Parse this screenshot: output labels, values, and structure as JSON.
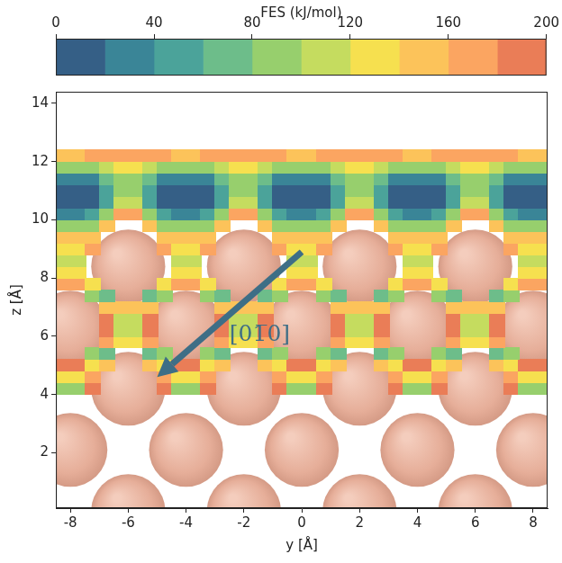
{
  "chart_data": {
    "type": "contour",
    "xlabel": "y [Å]",
    "ylabel": "z [Å]",
    "xlim": [
      -8.5,
      8.5
    ],
    "xticks": [
      -8,
      -6,
      -4,
      -2,
      0,
      2,
      4,
      6,
      8
    ],
    "ylim": [
      0.1,
      14.4
    ],
    "yticks": [
      2,
      4,
      6,
      8,
      10,
      12,
      14
    ],
    "grid": false,
    "x": [
      -8.25,
      -7.75,
      -7.25,
      -6.75,
      -6.25,
      -5.75,
      -5.25,
      -4.75,
      -4.25,
      -3.75,
      -3.25,
      -2.75,
      -2.25,
      -1.75,
      -1.25,
      -0.75,
      -0.25,
      0.25,
      0.75,
      1.25,
      1.75,
      2.25,
      2.75,
      3.25,
      3.75,
      4.25,
      4.75,
      5.25,
      5.75,
      6.25,
      6.75,
      7.25,
      7.75,
      8.25
    ],
    "y": [
      4.2,
      4.6,
      5.0,
      5.4,
      5.8,
      6.2,
      6.6,
      7.0,
      7.4,
      7.8,
      8.2,
      8.6,
      9.0,
      9.4,
      9.8,
      10.2,
      10.6,
      11.0,
      11.4,
      11.8,
      12.2
    ],
    "cells": [
      [
        100,
        100,
        190,
        null,
        null,
        null,
        null,
        190,
        100,
        100,
        190,
        null,
        null,
        null,
        null,
        190,
        100,
        100,
        190,
        null,
        null,
        null,
        null,
        190,
        100,
        100,
        190,
        null,
        null,
        null,
        null,
        190,
        100,
        100
      ],
      [
        140,
        140,
        180,
        null,
        null,
        null,
        null,
        180,
        140,
        140,
        180,
        null,
        null,
        null,
        null,
        180,
        140,
        140,
        180,
        null,
        null,
        null,
        null,
        180,
        140,
        140,
        180,
        null,
        null,
        null,
        null,
        180,
        140,
        140
      ],
      [
        190,
        190,
        130,
        160,
        null,
        null,
        160,
        130,
        190,
        190,
        130,
        160,
        null,
        null,
        160,
        130,
        190,
        190,
        130,
        160,
        null,
        null,
        160,
        130,
        190,
        190,
        130,
        160,
        null,
        null,
        160,
        130,
        190,
        190
      ],
      [
        null,
        null,
        90,
        80,
        null,
        null,
        80,
        90,
        null,
        null,
        90,
        80,
        null,
        null,
        80,
        90,
        null,
        null,
        90,
        80,
        null,
        null,
        80,
        90,
        null,
        null,
        90,
        80,
        null,
        null,
        80,
        90,
        null,
        null
      ],
      [
        null,
        null,
        null,
        170,
        140,
        140,
        170,
        null,
        null,
        null,
        null,
        170,
        140,
        140,
        170,
        null,
        null,
        null,
        null,
        170,
        140,
        140,
        170,
        null,
        null,
        null,
        null,
        170,
        140,
        140,
        170,
        null,
        null,
        null
      ],
      [
        null,
        null,
        null,
        190,
        110,
        110,
        190,
        null,
        null,
        null,
        null,
        190,
        110,
        110,
        190,
        null,
        null,
        null,
        null,
        190,
        110,
        110,
        190,
        null,
        null,
        null,
        null,
        190,
        110,
        110,
        190,
        null,
        null,
        null
      ],
      [
        null,
        null,
        null,
        185,
        120,
        120,
        185,
        null,
        null,
        null,
        null,
        185,
        120,
        120,
        185,
        null,
        null,
        null,
        null,
        185,
        120,
        120,
        185,
        null,
        null,
        null,
        null,
        185,
        120,
        120,
        185,
        null,
        null,
        null
      ],
      [
        null,
        null,
        null,
        150,
        150,
        150,
        150,
        null,
        null,
        null,
        null,
        150,
        150,
        150,
        150,
        null,
        null,
        null,
        null,
        150,
        150,
        150,
        150,
        null,
        null,
        null,
        null,
        150,
        150,
        150,
        150,
        null,
        null,
        null
      ],
      [
        null,
        null,
        90,
        80,
        null,
        null,
        80,
        90,
        null,
        null,
        90,
        80,
        null,
        null,
        80,
        90,
        null,
        null,
        90,
        80,
        null,
        null,
        80,
        90,
        null,
        null,
        90,
        80,
        null,
        null,
        80,
        90,
        null,
        null
      ],
      [
        180,
        180,
        130,
        null,
        null,
        null,
        null,
        130,
        180,
        180,
        130,
        null,
        null,
        null,
        null,
        130,
        180,
        180,
        130,
        null,
        null,
        null,
        null,
        130,
        180,
        180,
        130,
        null,
        null,
        null,
        null,
        130,
        180,
        180
      ],
      [
        140,
        140,
        null,
        null,
        null,
        null,
        null,
        null,
        140,
        140,
        null,
        null,
        null,
        null,
        null,
        null,
        140,
        140,
        null,
        null,
        null,
        null,
        null,
        null,
        140,
        140,
        null,
        null,
        null,
        null,
        null,
        null,
        140,
        140
      ],
      [
        120,
        120,
        null,
        null,
        null,
        null,
        null,
        null,
        120,
        120,
        null,
        null,
        null,
        null,
        null,
        null,
        120,
        120,
        null,
        null,
        null,
        null,
        null,
        null,
        120,
        120,
        null,
        null,
        null,
        null,
        null,
        null,
        120,
        120
      ],
      [
        130,
        130,
        180,
        null,
        null,
        null,
        null,
        180,
        130,
        130,
        180,
        null,
        null,
        null,
        null,
        180,
        130,
        130,
        180,
        null,
        null,
        null,
        null,
        180,
        130,
        130,
        180,
        null,
        null,
        null,
        null,
        180,
        130,
        130
      ],
      [
        150,
        150,
        160,
        null,
        null,
        null,
        null,
        160,
        150,
        150,
        160,
        null,
        null,
        null,
        null,
        160,
        150,
        150,
        160,
        null,
        null,
        null,
        null,
        160,
        150,
        150,
        160,
        null,
        null,
        null,
        null,
        160,
        150,
        150
      ],
      [
        90,
        90,
        100,
        150,
        null,
        null,
        150,
        100,
        90,
        90,
        100,
        150,
        null,
        null,
        150,
        100,
        90,
        90,
        100,
        150,
        null,
        null,
        150,
        100,
        90,
        90,
        100,
        150,
        null,
        null,
        150,
        100,
        90,
        90
      ],
      [
        30,
        30,
        45,
        90,
        170,
        170,
        90,
        45,
        30,
        30,
        45,
        90,
        170,
        170,
        90,
        45,
        30,
        30,
        45,
        90,
        170,
        170,
        90,
        45,
        30,
        30,
        45,
        90,
        170,
        170,
        90,
        45,
        30,
        30
      ],
      [
        10,
        10,
        20,
        55,
        110,
        110,
        55,
        20,
        10,
        10,
        20,
        55,
        110,
        110,
        55,
        20,
        10,
        10,
        20,
        55,
        110,
        110,
        55,
        20,
        10,
        10,
        20,
        55,
        110,
        110,
        55,
        20,
        10,
        10
      ],
      [
        5,
        5,
        15,
        50,
        85,
        85,
        50,
        15,
        5,
        5,
        15,
        50,
        85,
        85,
        50,
        15,
        5,
        5,
        15,
        50,
        85,
        85,
        50,
        15,
        5,
        5,
        15,
        50,
        85,
        85,
        50,
        15,
        5,
        5
      ],
      [
        30,
        30,
        40,
        65,
        90,
        90,
        65,
        40,
        30,
        30,
        40,
        65,
        90,
        90,
        65,
        40,
        30,
        30,
        40,
        65,
        90,
        90,
        65,
        40,
        30,
        30,
        40,
        65,
        90,
        90,
        65,
        40,
        30,
        30
      ],
      [
        90,
        90,
        100,
        115,
        130,
        130,
        115,
        100,
        90,
        90,
        100,
        115,
        130,
        130,
        115,
        100,
        90,
        90,
        100,
        115,
        130,
        130,
        115,
        100,
        90,
        90,
        100,
        115,
        130,
        130,
        115,
        100,
        90,
        90
      ],
      [
        160,
        160,
        165,
        170,
        175,
        175,
        170,
        165,
        160,
        160,
        165,
        170,
        175,
        175,
        170,
        165,
        160,
        160,
        165,
        170,
        175,
        175,
        170,
        165,
        160,
        160,
        165,
        170,
        175,
        175,
        170,
        165,
        160,
        160
      ]
    ],
    "colorbar": {
      "title": "FES (kJ/mol)",
      "range": [
        0,
        200
      ],
      "ticks": [
        0,
        40,
        80,
        120,
        160,
        200
      ],
      "levels": [
        0,
        20,
        40,
        60,
        80,
        100,
        120,
        140,
        160,
        180,
        200
      ],
      "colors": [
        "#355f86",
        "#3a8597",
        "#4ba39a",
        "#6dbd8a",
        "#97cf6d",
        "#c5dc5f",
        "#f6e04f",
        "#fcc35a",
        "#fba561",
        "#ea7d57"
      ]
    },
    "atoms": {
      "color": "#e6ae99",
      "radius": 1.28,
      "positions": [
        [
          -6,
          8.4
        ],
        [
          -2,
          8.4
        ],
        [
          2,
          8.4
        ],
        [
          6,
          8.4
        ],
        [
          -8,
          6.3
        ],
        [
          -4,
          6.3
        ],
        [
          0,
          6.3
        ],
        [
          4,
          6.3
        ],
        [
          8,
          6.3
        ],
        [
          -6,
          4.2
        ],
        [
          -2,
          4.2
        ],
        [
          2,
          4.2
        ],
        [
          6,
          4.2
        ],
        [
          -8,
          2.1
        ],
        [
          -4,
          2.1
        ],
        [
          0,
          2.1
        ],
        [
          4,
          2.1
        ],
        [
          8,
          2.1
        ],
        [
          -6,
          0
        ],
        [
          -2,
          0
        ],
        [
          2,
          0
        ],
        [
          6,
          0
        ]
      ]
    },
    "annotations": [
      {
        "text": "[01̅0]",
        "color": "#3e6e86",
        "from": [
          0,
          8.9
        ],
        "to": [
          -5,
          4.6
        ],
        "at": [
          -1.45,
          6.05
        ]
      }
    ]
  }
}
